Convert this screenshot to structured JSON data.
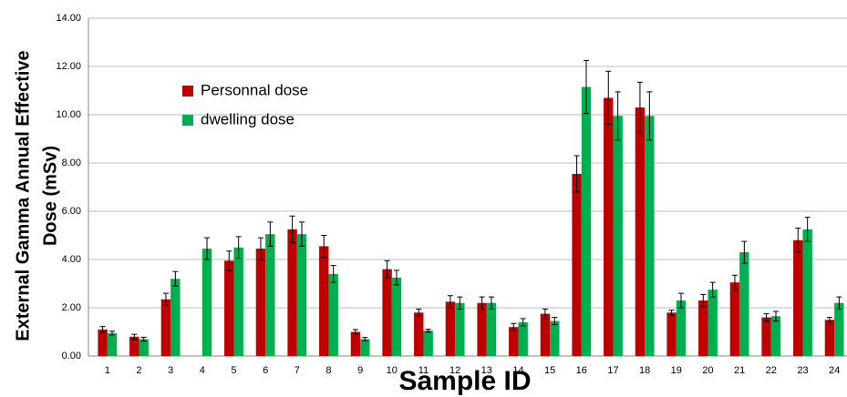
{
  "chart_data": {
    "type": "bar",
    "x_label": "Sample ID",
    "y_label": [
      "External Gamma Annual Effective",
      "Dose  (mSv)"
    ],
    "categories": [
      "1",
      "2",
      "3",
      "4",
      "5",
      "6",
      "7",
      "8",
      "9",
      "10",
      "11",
      "12",
      "13",
      "14",
      "15",
      "16",
      "17",
      "18",
      "19",
      "20",
      "21",
      "22",
      "23",
      "24"
    ],
    "series": [
      {
        "name": "Personnal dose",
        "color": "#c00000",
        "values": [
          1.1,
          0.8,
          2.35,
          null,
          3.95,
          4.45,
          5.25,
          4.55,
          1.0,
          3.6,
          1.8,
          2.25,
          2.2,
          1.2,
          1.75,
          7.55,
          10.7,
          10.3,
          1.8,
          2.3,
          3.05,
          1.6,
          4.8,
          1.5
        ],
        "errors": [
          0.12,
          0.1,
          0.25,
          null,
          0.4,
          0.45,
          0.55,
          0.45,
          0.1,
          0.35,
          0.15,
          0.25,
          0.25,
          0.15,
          0.2,
          0.75,
          1.1,
          1.05,
          0.1,
          0.25,
          0.3,
          0.15,
          0.5,
          0.1
        ]
      },
      {
        "name": "dwelling dose",
        "color": "#00b050",
        "values": [
          0.95,
          0.7,
          3.2,
          4.45,
          4.5,
          5.05,
          5.05,
          3.4,
          0.7,
          3.25,
          1.05,
          2.2,
          2.2,
          1.4,
          1.45,
          11.15,
          9.95,
          9.95,
          2.3,
          2.75,
          4.3,
          1.65,
          5.25,
          2.2
        ],
        "errors": [
          0.08,
          0.08,
          0.3,
          0.45,
          0.45,
          0.5,
          0.5,
          0.35,
          0.07,
          0.3,
          0.06,
          0.25,
          0.25,
          0.15,
          0.15,
          1.1,
          1.0,
          1.0,
          0.3,
          0.3,
          0.45,
          0.2,
          0.5,
          0.25
        ]
      }
    ],
    "ylim": [
      0,
      14
    ],
    "yticks": [
      {
        "value": 0,
        "label": "0.00"
      },
      {
        "value": 2,
        "label": "2.00"
      },
      {
        "value": 4,
        "label": "4.00"
      },
      {
        "value": 6,
        "label": "6.00"
      },
      {
        "value": 8,
        "label": "8.00"
      },
      {
        "value": 10,
        "label": "10.00"
      },
      {
        "value": 12,
        "label": "12.00"
      },
      {
        "value": 14,
        "label": "14.00"
      }
    ],
    "grid": true
  }
}
